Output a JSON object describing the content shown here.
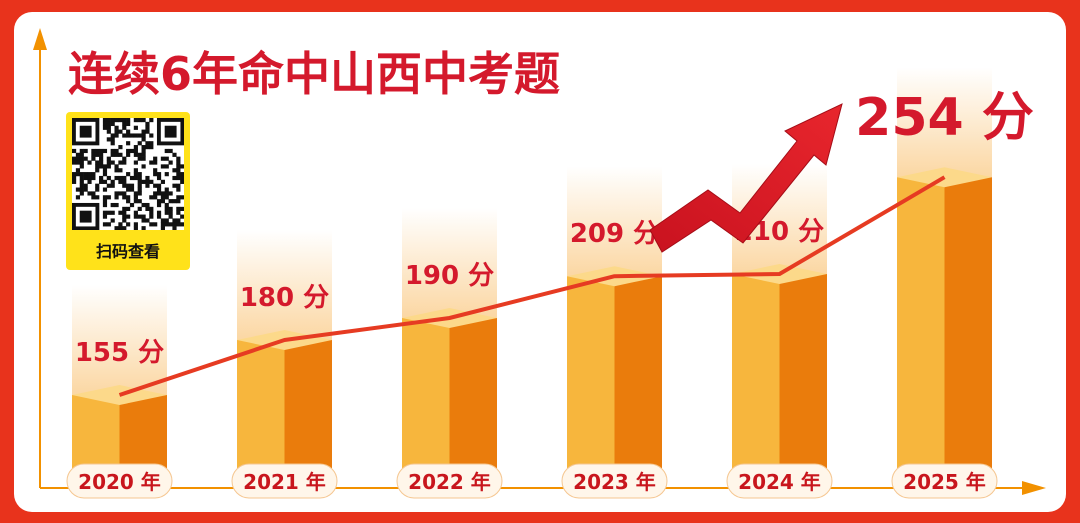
{
  "title": "连续6年命中山西中考题",
  "qr": {
    "label": "扫码查看"
  },
  "colors": {
    "background": "#e8331c",
    "accent_red": "#d4192c",
    "bar_front": "#f7b63d",
    "bar_side": "#ea7c0c",
    "bar_top": "#fcd98a",
    "trend_line": "#e63b22",
    "axis": "#f29100"
  },
  "chart_data": {
    "type": "bar",
    "title": "连续6年命中山西中考题",
    "categories": [
      "2020 年",
      "2021 年",
      "2022 年",
      "2023 年",
      "2024 年",
      "2025 年"
    ],
    "values": [
      155,
      180,
      190,
      209,
      210,
      254
    ],
    "value_labels": [
      "155 分",
      "180 分",
      "190 分",
      "209 分",
      "210 分",
      "254 分"
    ],
    "trend_line": true,
    "highlight_last": true,
    "grid": false,
    "legend": "none"
  }
}
